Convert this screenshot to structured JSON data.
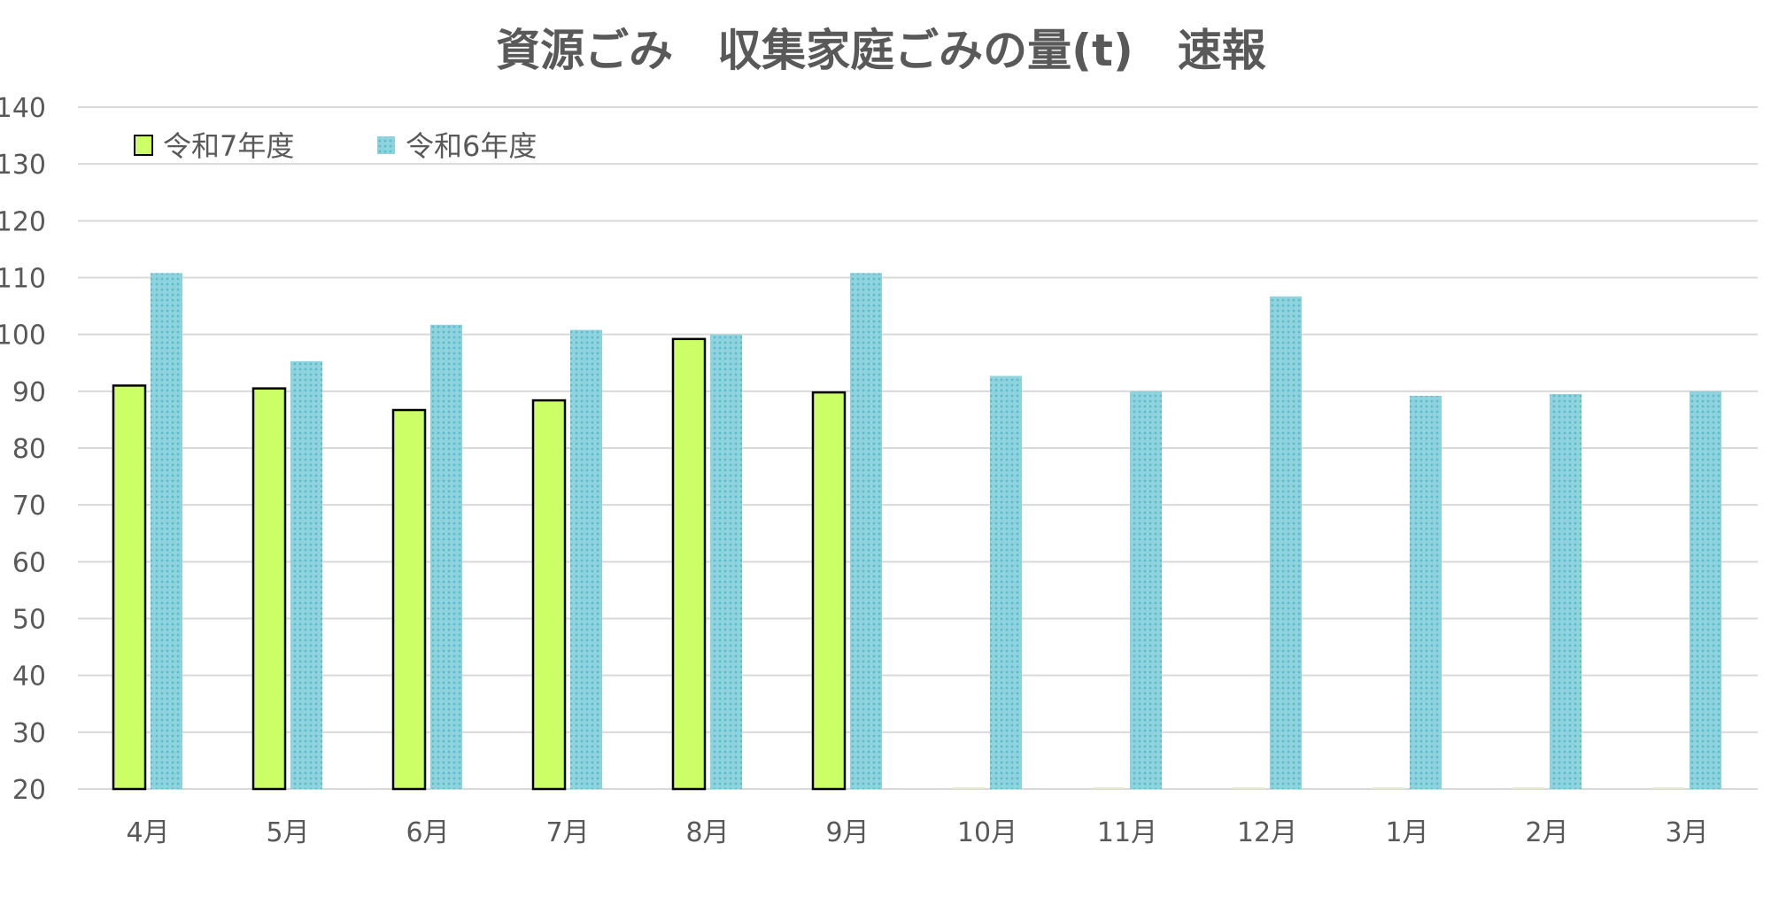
{
  "chart_data": {
    "type": "bar",
    "title": "資源ごみ　収集家庭ごみの量(t)　速報",
    "xlabel": "",
    "ylabel": "",
    "ylim": [
      20,
      140
    ],
    "yticks": [
      20,
      30,
      40,
      50,
      60,
      70,
      80,
      90,
      100,
      110,
      120,
      130,
      140
    ],
    "grid": true,
    "legend_position": "top-left",
    "categories": [
      "4月",
      "5月",
      "6月",
      "7月",
      "8月",
      "9月",
      "10月",
      "11月",
      "12月",
      "1月",
      "2月",
      "3月"
    ],
    "series": [
      {
        "name": "令和7年度",
        "color": "#ccff66",
        "values": [
          91,
          90.5,
          86.7,
          88.4,
          99.2,
          89.8,
          null,
          null,
          null,
          null,
          null,
          null
        ]
      },
      {
        "name": "令和6年度",
        "color": "#7fccd9",
        "values": [
          110.8,
          95.3,
          101.7,
          100.8,
          100,
          110.8,
          92.7,
          90,
          106.7,
          89.2,
          89.5,
          90
        ]
      }
    ]
  }
}
